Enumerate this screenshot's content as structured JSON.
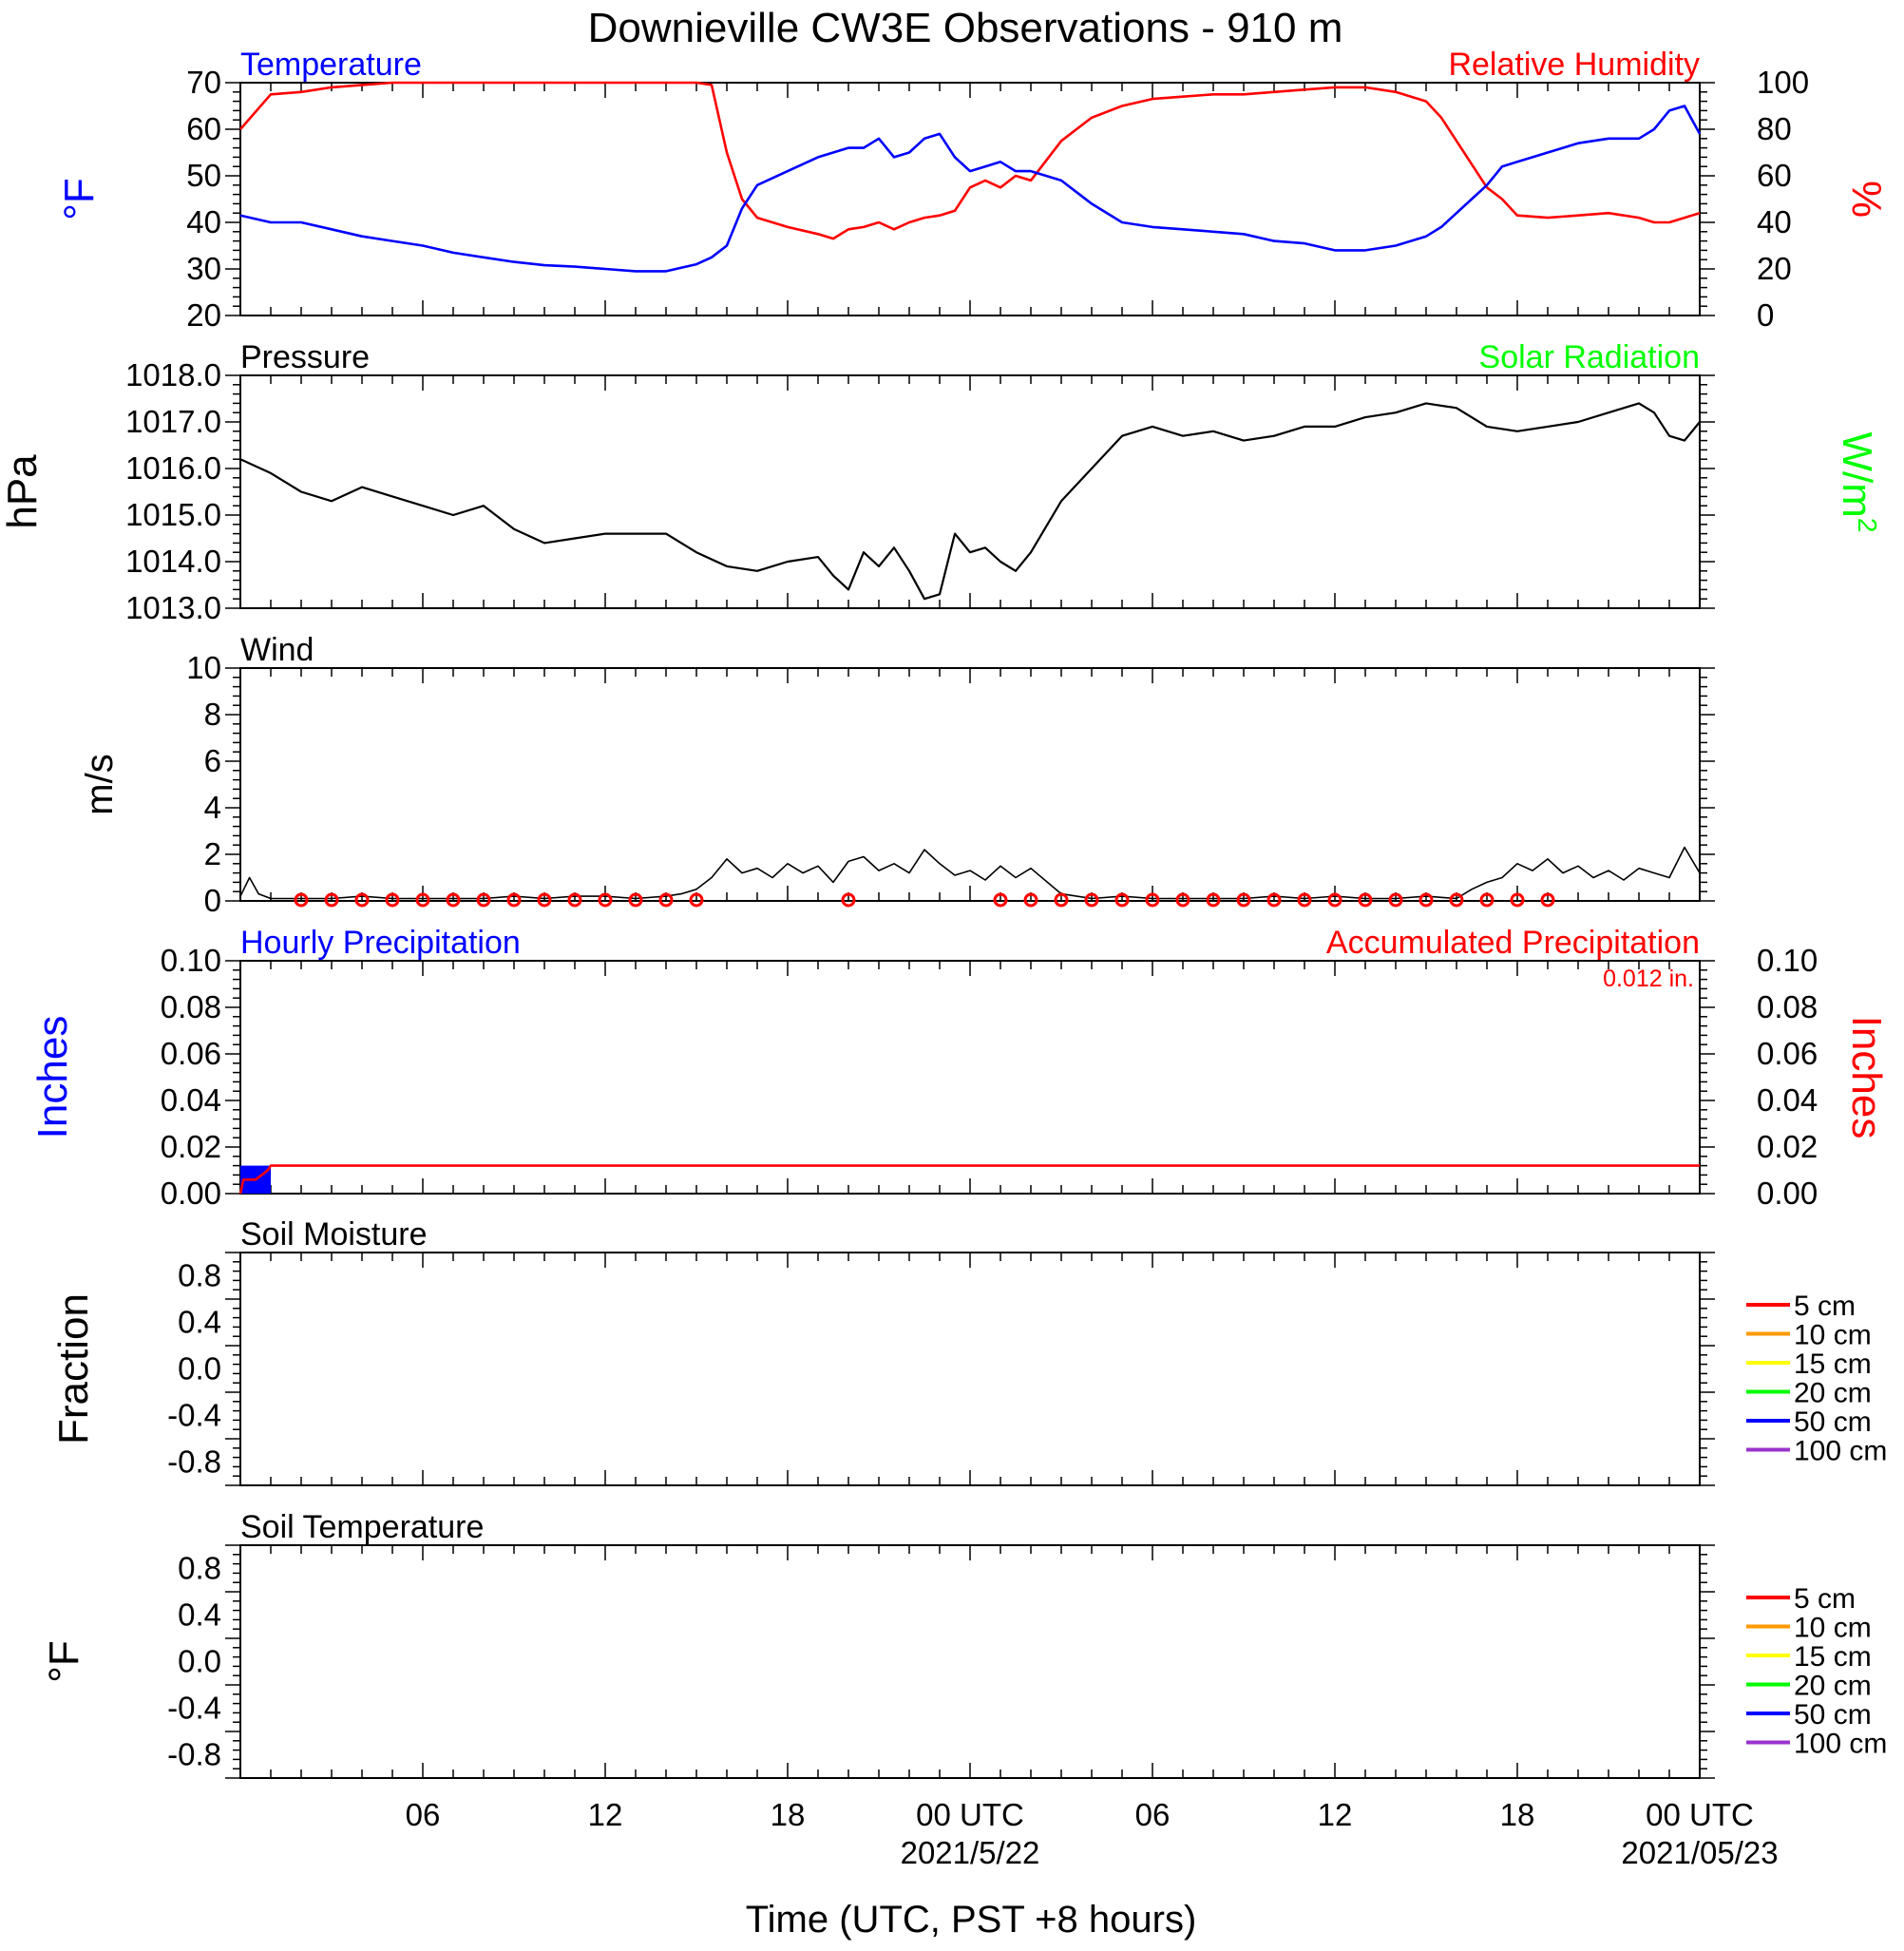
{
  "title": "Downieville CW3E Observations - 910 m",
  "x_axis": {
    "label": "Time (UTC, PST +8 hours)",
    "ticks": [
      "06",
      "12",
      "18",
      "00 UTC",
      "06",
      "12",
      "18",
      "00 UTC"
    ],
    "dates": [
      "2021/5/22",
      "2021/05/23"
    ]
  },
  "legend": {
    "entries": [
      "5 cm",
      "10 cm",
      "15 cm",
      "20 cm",
      "50 cm",
      "100 cm"
    ],
    "colors": [
      "#ff0000",
      "#ff9900",
      "#ffff00",
      "#00ff00",
      "#0000ff",
      "#9933cc"
    ]
  },
  "colors": {
    "blue": "#0000ff",
    "red": "#ff0000",
    "green": "#00ff00",
    "black": "#000000"
  },
  "chart_data": [
    {
      "type": "line",
      "panel": "temperature_humidity",
      "title_left": "Temperature",
      "title_right": "Relative Humidity",
      "ylabel_left": "°F",
      "ylabel_right": "%",
      "ylim_left": [
        20,
        70
      ],
      "ylim_right": [
        0,
        100
      ],
      "yticks_left": [
        "70",
        "60",
        "50",
        "40",
        "30",
        "20"
      ],
      "yticks_right": [
        "100",
        "80",
        "60",
        "40",
        "20",
        "0"
      ],
      "x_hours": [
        0,
        1,
        2,
        3,
        4,
        5,
        6,
        7,
        8,
        9,
        10,
        11,
        12,
        13,
        14,
        15,
        15.5,
        16,
        16.5,
        17,
        18,
        19,
        19.5,
        20,
        20.5,
        21,
        21.5,
        22,
        22.5,
        23,
        23.5,
        24,
        24.5,
        25,
        25.5,
        26,
        27,
        28,
        29,
        30,
        31,
        32,
        33,
        34,
        35,
        36,
        37,
        38,
        39,
        39.5,
        40,
        40.5,
        41,
        41.5,
        42,
        43,
        44,
        45,
        46,
        46.5,
        47,
        47.5,
        48
      ],
      "series": [
        {
          "name": "Temperature",
          "axis": "left",
          "color": "#0000ff",
          "values": [
            41.5,
            40,
            40,
            38.5,
            37,
            36,
            35,
            33.5,
            32.5,
            31.5,
            30.8,
            30.5,
            30,
            29.5,
            29.5,
            31,
            32.5,
            35,
            43,
            48,
            51,
            54,
            55,
            56,
            56,
            58,
            54,
            55,
            58,
            59,
            54,
            51,
            52,
            53,
            51,
            51,
            49,
            44,
            40,
            39,
            38.5,
            38,
            37.5,
            36,
            35.5,
            34,
            34,
            35,
            37,
            39,
            42,
            45,
            48,
            52,
            53,
            55,
            57,
            58,
            58,
            60,
            64,
            65,
            59
          ]
        },
        {
          "name": "Relative Humidity",
          "axis": "right",
          "color": "#ff0000",
          "values": [
            80,
            95,
            96,
            98,
            99,
            100,
            100,
            100,
            100,
            100,
            100,
            100,
            100,
            100,
            100,
            100,
            99,
            70,
            50,
            42,
            38,
            35,
            33,
            37,
            38,
            40,
            37,
            40,
            42,
            43,
            45,
            55,
            58,
            55,
            60,
            58,
            75,
            85,
            90,
            93,
            94,
            95,
            95,
            96,
            97,
            98,
            98,
            96,
            92,
            85,
            75,
            65,
            55,
            50,
            43,
            42,
            43,
            44,
            42,
            40,
            40,
            42,
            44
          ]
        }
      ]
    },
    {
      "type": "line",
      "panel": "pressure",
      "title_left": "Pressure",
      "title_right": "Solar Radiation",
      "ylabel_left": "hPa",
      "ylabel_right": "W/m",
      "ylabel_right_superscript": "2",
      "ylim": [
        1013.0,
        1018.0
      ],
      "yticks": [
        "1018.0",
        "1017.0",
        "1016.0",
        "1015.0",
        "1014.0",
        "1013.0"
      ],
      "x_hours": [
        0,
        1,
        2,
        3,
        4,
        5,
        6,
        7,
        8,
        9,
        10,
        11,
        12,
        13,
        14,
        15,
        16,
        17,
        18,
        19,
        19.5,
        20,
        20.5,
        21,
        21.5,
        22,
        22.5,
        23,
        23.5,
        24,
        24.5,
        25,
        25.5,
        26,
        27,
        28,
        29,
        30,
        31,
        32,
        33,
        34,
        35,
        36,
        37,
        38,
        39,
        40,
        41,
        42,
        43,
        44,
        45,
        46,
        46.5,
        47,
        47.5,
        48
      ],
      "series": [
        {
          "name": "Pressure",
          "color": "#000000",
          "values": [
            1016.2,
            1015.9,
            1015.5,
            1015.3,
            1015.6,
            1015.4,
            1015.2,
            1015.0,
            1015.2,
            1014.7,
            1014.4,
            1014.5,
            1014.6,
            1014.6,
            1014.6,
            1014.2,
            1013.9,
            1013.8,
            1014.0,
            1014.1,
            1013.7,
            1013.4,
            1014.2,
            1013.9,
            1014.3,
            1013.8,
            1013.2,
            1013.3,
            1014.6,
            1014.2,
            1014.3,
            1014.0,
            1013.8,
            1014.2,
            1015.3,
            1016.0,
            1016.7,
            1016.9,
            1016.7,
            1016.8,
            1016.6,
            1016.7,
            1016.9,
            1016.9,
            1017.1,
            1017.2,
            1017.4,
            1017.3,
            1016.9,
            1016.8,
            1016.9,
            1017.0,
            1017.2,
            1017.4,
            1017.2,
            1016.7,
            1016.6,
            1017.0
          ]
        }
      ]
    },
    {
      "type": "line",
      "panel": "wind",
      "title_left": "Wind",
      "ylabel": "m/s",
      "ylim": [
        0,
        10
      ],
      "yticks": [
        "10",
        "8",
        "6",
        "4",
        "2",
        "0"
      ],
      "x_hours": [
        0,
        0.3,
        0.6,
        1,
        2,
        3,
        4,
        5,
        6,
        7,
        8,
        9,
        10,
        11,
        12,
        13,
        14,
        14.5,
        15,
        15.5,
        16,
        16.5,
        17,
        17.5,
        18,
        18.5,
        19,
        19.5,
        20,
        20.5,
        21,
        21.5,
        22,
        22.5,
        23,
        23.5,
        24,
        24.5,
        25,
        25.5,
        26,
        27,
        28,
        29,
        30,
        31,
        32,
        33,
        34,
        35,
        36,
        37,
        38,
        39,
        40,
        40.5,
        41,
        41.5,
        42,
        42.5,
        43,
        43.5,
        44,
        44.5,
        45,
        45.5,
        46,
        46.5,
        47,
        47.5,
        48
      ],
      "series": [
        {
          "name": "Wind speed",
          "color": "#000000",
          "values": [
            0.2,
            1.0,
            0.3,
            0.1,
            0.1,
            0.1,
            0.2,
            0.1,
            0.1,
            0.1,
            0.1,
            0.2,
            0.1,
            0.2,
            0.2,
            0.1,
            0.2,
            0.3,
            0.5,
            1.0,
            1.8,
            1.2,
            1.4,
            1.0,
            1.6,
            1.2,
            1.5,
            0.8,
            1.7,
            1.9,
            1.3,
            1.6,
            1.2,
            2.2,
            1.6,
            1.1,
            1.3,
            0.9,
            1.5,
            1.0,
            1.4,
            0.3,
            0.1,
            0.2,
            0.1,
            0.1,
            0.1,
            0.1,
            0.2,
            0.1,
            0.2,
            0.1,
            0.1,
            0.2,
            0.1,
            0.5,
            0.8,
            1.0,
            1.6,
            1.3,
            1.8,
            1.2,
            1.5,
            1.0,
            1.3,
            0.9,
            1.4,
            1.2,
            1.0,
            2.3,
            1.2
          ]
        }
      ],
      "calm_circles_hours": [
        2,
        3,
        4,
        5,
        6,
        7,
        8,
        9,
        10,
        11,
        12,
        13,
        14,
        15,
        20,
        25,
        26,
        27,
        28,
        29,
        30,
        31,
        32,
        33,
        34,
        35,
        36,
        37,
        38,
        39,
        40,
        41,
        42,
        43
      ]
    },
    {
      "type": "bar",
      "panel": "precipitation",
      "title_left": "Hourly Precipitation",
      "title_right": "Accumulated Precipitation",
      "annotation": "0.012 in.",
      "ylabel_left": "Inches",
      "ylabel_right": "Inches",
      "ylim": [
        0,
        0.1
      ],
      "yticks": [
        "0.10",
        "0.08",
        "0.06",
        "0.04",
        "0.02",
        "0.00"
      ],
      "hourly": {
        "x_hours": [
          0
        ],
        "values": [
          0.012
        ],
        "color": "#0000ff"
      },
      "accumulated": {
        "x_hours": [
          0,
          0.1,
          0.5,
          0.9,
          1.0,
          48
        ],
        "values": [
          0.0,
          0.006,
          0.006,
          0.01,
          0.012,
          0.012
        ],
        "color": "#ff0000"
      }
    },
    {
      "type": "line",
      "panel": "soil_moisture",
      "title_left": "Soil Moisture",
      "ylabel": "Fraction",
      "ylim": [
        -1.0,
        1.0
      ],
      "yticks": [
        "0.8",
        "0.4",
        "0.0",
        "-0.4",
        "-0.8"
      ],
      "series": []
    },
    {
      "type": "line",
      "panel": "soil_temperature",
      "title_left": "Soil Temperature",
      "ylabel": "°F",
      "ylim": [
        -1.0,
        1.0
      ],
      "yticks": [
        "0.8",
        "0.4",
        "0.0",
        "-0.4",
        "-0.8"
      ],
      "series": []
    }
  ]
}
